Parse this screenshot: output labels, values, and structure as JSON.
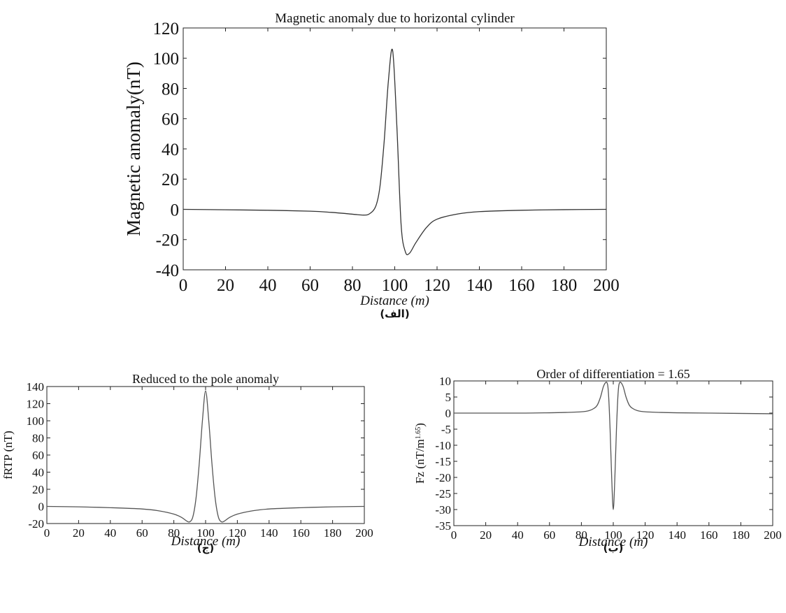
{
  "figure": {
    "charts": [
      {
        "id": "top",
        "letter": "(الف)",
        "font_scale": 1.35
      },
      {
        "id": "bottom_left",
        "letter": "(ج)",
        "font_scale": 1.0
      },
      {
        "id": "bottom_right",
        "letter": "(ب)",
        "font_scale": 1.0
      }
    ]
  },
  "chart_data": [
    {
      "type": "line",
      "title": "Magnetic anomaly due to horizontal cylinder",
      "xlabel": "Distance (m)",
      "ylabel": "Magnetic anomaly(nT)",
      "xlim": [
        0,
        200
      ],
      "ylim": [
        -40,
        120
      ],
      "xticks": [
        0,
        20,
        40,
        60,
        80,
        100,
        120,
        140,
        160,
        180,
        200
      ],
      "yticks": [
        -40,
        -20,
        0,
        20,
        40,
        60,
        80,
        100,
        120
      ],
      "grid": false,
      "line_color": "#333333",
      "series": [
        {
          "x": [
            0,
            20,
            40,
            60,
            70,
            80,
            85,
            88,
            91,
            93,
            95,
            97,
            99,
            101,
            103,
            105,
            107,
            110,
            115,
            120,
            130,
            140,
            160,
            180,
            200
          ],
          "y": [
            0,
            -0.3,
            -0.6,
            -1.2,
            -2.0,
            -3.2,
            -3.8,
            -3.0,
            2.0,
            15,
            45,
            85,
            105,
            55,
            -10,
            -28,
            -29,
            -22,
            -12,
            -6.5,
            -3,
            -1.5,
            -0.6,
            -0.2,
            0
          ]
        }
      ]
    },
    {
      "type": "line",
      "title": "Reduced to the pole anomaly",
      "xlabel": "Distance (m)",
      "ylabel": "fRTP (nT)",
      "xlim": [
        0,
        200
      ],
      "ylim": [
        -20,
        140
      ],
      "xticks": [
        0,
        20,
        40,
        60,
        80,
        100,
        120,
        140,
        160,
        180,
        200
      ],
      "yticks": [
        -20,
        0,
        20,
        40,
        60,
        80,
        100,
        120,
        140
      ],
      "grid": false,
      "line_color": "#555555",
      "series": [
        {
          "x": [
            0,
            20,
            40,
            60,
            70,
            80,
            85,
            88,
            90,
            92,
            94,
            96,
            98,
            100,
            102,
            104,
            106,
            108,
            110,
            112,
            115,
            120,
            130,
            140,
            160,
            180,
            200
          ],
          "y": [
            0,
            -0.5,
            -1.5,
            -3,
            -5,
            -9,
            -13,
            -17,
            -18,
            -12,
            10,
            50,
            100,
            135,
            100,
            50,
            10,
            -12,
            -18,
            -17,
            -13,
            -9,
            -5,
            -3,
            -1.5,
            -0.5,
            0
          ]
        }
      ]
    },
    {
      "type": "line",
      "title": "Order of differentiation = 1.65",
      "xlabel": "Distance (m)",
      "ylabel": "Fz (nT/m",
      "ylabel_sup": "1.65",
      "ylabel_suffix": ")",
      "xlim": [
        0,
        200
      ],
      "ylim": [
        -35,
        10
      ],
      "xticks": [
        0,
        20,
        40,
        60,
        80,
        100,
        120,
        140,
        160,
        180,
        200
      ],
      "yticks": [
        -35,
        -30,
        -25,
        -20,
        -15,
        -10,
        -5,
        0,
        5,
        10
      ],
      "grid": false,
      "line_color": "#555555",
      "series": [
        {
          "x": [
            0,
            40,
            60,
            70,
            80,
            85,
            88,
            90,
            92,
            94,
            96,
            97,
            98,
            99,
            100,
            101,
            102,
            103,
            104,
            106,
            108,
            110,
            112,
            115,
            120,
            130,
            140,
            160,
            200
          ],
          "y": [
            0,
            0,
            0.1,
            0.2,
            0.4,
            0.8,
            1.5,
            2.5,
            5,
            8.5,
            9.5,
            6,
            -5,
            -20,
            -30,
            -20,
            -5,
            6,
            9.5,
            8.5,
            5,
            2.5,
            1.5,
            0.8,
            0.4,
            0.2,
            0.1,
            0,
            -0.2
          ]
        }
      ]
    }
  ]
}
